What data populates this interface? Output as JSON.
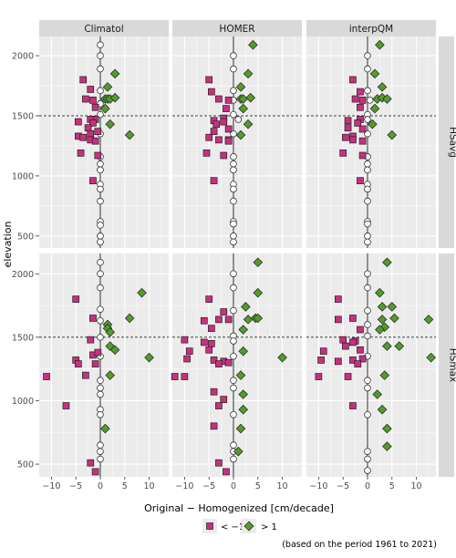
{
  "chart_data": {
    "type": "scatter",
    "xlabel": "Original − Homogenized [cm/decade]",
    "ylabel": "elevation",
    "caption": "(based on the period 1961 to 2021)",
    "columns": [
      "Climatol",
      "HOMER",
      "interpQM"
    ],
    "rows": [
      "HSavg",
      "HSmax"
    ],
    "xlim": [
      -12.5,
      14
    ],
    "ylim": [
      400,
      2160
    ],
    "x_ticks": [
      -10,
      -5,
      0,
      5,
      10
    ],
    "x_tick_labels": [
      "−10",
      "−5",
      "0",
      "5",
      "10"
    ],
    "y_ticks": [
      500,
      1000,
      1500,
      2000
    ],
    "y_tick_labels": [
      "500",
      "1000",
      "1500",
      "2000"
    ],
    "reference_line_elevation": 1500,
    "grid": true,
    "legend": {
      "position": "bottom",
      "entries": [
        {
          "label": "< −1",
          "shape": "square",
          "color": "#c8307f"
        },
        {
          "label": "> 1",
          "shape": "diamond",
          "color": "#559a2b"
        }
      ],
      "neutral_color": "#ffffff"
    },
    "colors": {
      "panel_bg": "#ebebeb",
      "grid": "#ffffff",
      "strip_bg": "#d9d9d9",
      "negative": "#c8307f",
      "positive": "#559a2b",
      "neutral": "#ffffff"
    },
    "series": [
      {
        "row": "HSavg",
        "column": "Climatol",
        "negative": [
          [
            -3.5,
            1800
          ],
          [
            -2,
            1720
          ],
          [
            -3,
            1640
          ],
          [
            -1.5,
            1630
          ],
          [
            -1,
            1570
          ],
          [
            -1,
            1470
          ],
          [
            -2,
            1470
          ],
          [
            -4.5,
            1450
          ],
          [
            -1.5,
            1440
          ],
          [
            -2.5,
            1400
          ],
          [
            -0.5,
            1370
          ],
          [
            -2,
            1350
          ],
          [
            -4.5,
            1330
          ],
          [
            -3.5,
            1320
          ],
          [
            -2,
            1300
          ],
          [
            -1,
            1290
          ],
          [
            -4,
            1190
          ],
          [
            -0.5,
            1170
          ],
          [
            -1.5,
            960
          ]
        ],
        "positive": [
          [
            3,
            1850
          ],
          [
            1.5,
            1740
          ],
          [
            1,
            1640
          ],
          [
            1.5,
            1640
          ],
          [
            2,
            1640
          ],
          [
            3,
            1650
          ],
          [
            1,
            1560
          ],
          [
            2,
            1430
          ],
          [
            6,
            1340
          ]
        ],
        "neutral": [
          [
            0,
            2090
          ],
          [
            0,
            2000
          ],
          [
            0,
            1890
          ],
          [
            0,
            1710
          ],
          [
            0,
            1600
          ],
          [
            0,
            1510
          ],
          [
            0,
            1350
          ],
          [
            0,
            1160
          ],
          [
            0,
            1100
          ],
          [
            0,
            1050
          ],
          [
            0,
            930
          ],
          [
            0,
            890
          ],
          [
            0,
            790
          ],
          [
            0,
            620
          ],
          [
            0,
            590
          ],
          [
            0,
            500
          ],
          [
            0,
            450
          ]
        ]
      },
      {
        "row": "HSavg",
        "column": "HOMER",
        "negative": [
          [
            -5,
            1800
          ],
          [
            -4.5,
            1700
          ],
          [
            -3,
            1640
          ],
          [
            -1,
            1630
          ],
          [
            -1.5,
            1560
          ],
          [
            -2,
            1480
          ],
          [
            -4,
            1460
          ],
          [
            -2,
            1450
          ],
          [
            -3.5,
            1430
          ],
          [
            -1,
            1390
          ],
          [
            -4,
            1370
          ],
          [
            -5,
            1320
          ],
          [
            -3,
            1300
          ],
          [
            -1,
            1300
          ],
          [
            -1,
            1290
          ],
          [
            -5.5,
            1190
          ],
          [
            -2,
            1170
          ],
          [
            -4,
            960
          ]
        ],
        "positive": [
          [
            4,
            2090
          ],
          [
            3,
            1850
          ],
          [
            1.5,
            1740
          ],
          [
            1.5,
            1640
          ],
          [
            2,
            1640
          ],
          [
            3.5,
            1650
          ],
          [
            2,
            1560
          ],
          [
            3,
            1430
          ],
          [
            1.5,
            1340
          ]
        ],
        "neutral": [
          [
            0,
            2000
          ],
          [
            0,
            1890
          ],
          [
            0,
            1710
          ],
          [
            0,
            1630
          ],
          [
            0,
            1510
          ],
          [
            1,
            1470
          ],
          [
            0,
            1350
          ],
          [
            0,
            1160
          ],
          [
            0,
            1100
          ],
          [
            0,
            1050
          ],
          [
            0,
            930
          ],
          [
            0,
            890
          ],
          [
            0,
            790
          ],
          [
            0,
            620
          ],
          [
            0,
            600
          ],
          [
            0,
            500
          ],
          [
            0,
            450
          ]
        ]
      },
      {
        "row": "HSavg",
        "column": "interpQM",
        "negative": [
          [
            -3,
            1800
          ],
          [
            -1.5,
            1700
          ],
          [
            -2.5,
            1640
          ],
          [
            -1,
            1630
          ],
          [
            -1.5,
            1570
          ],
          [
            -1.5,
            1470
          ],
          [
            -4,
            1460
          ],
          [
            -2,
            1440
          ],
          [
            -4,
            1400
          ],
          [
            -1,
            1390
          ],
          [
            -3,
            1330
          ],
          [
            -4.5,
            1320
          ],
          [
            -3,
            1300
          ],
          [
            -1,
            1290
          ],
          [
            -5,
            1190
          ],
          [
            -1,
            1170
          ],
          [
            -1.5,
            960
          ]
        ],
        "positive": [
          [
            2.5,
            2090
          ],
          [
            1.5,
            1850
          ],
          [
            3,
            1740
          ],
          [
            2,
            1640
          ],
          [
            3,
            1650
          ],
          [
            4,
            1640
          ],
          [
            1.5,
            1560
          ],
          [
            1,
            1430
          ],
          [
            5,
            1340
          ]
        ],
        "neutral": [
          [
            0,
            2000
          ],
          [
            0,
            1890
          ],
          [
            0,
            1710
          ],
          [
            0.5,
            1630
          ],
          [
            0,
            1510
          ],
          [
            0,
            1470
          ],
          [
            0,
            1350
          ],
          [
            0,
            1160
          ],
          [
            0,
            1100
          ],
          [
            0,
            1050
          ],
          [
            0,
            930
          ],
          [
            0,
            890
          ],
          [
            0,
            790
          ],
          [
            0,
            620
          ],
          [
            0,
            600
          ],
          [
            0,
            500
          ],
          [
            0,
            450
          ]
        ]
      },
      {
        "row": "HSmax",
        "column": "Climatol",
        "negative": [
          [
            -5,
            1800
          ],
          [
            -1.5,
            1650
          ],
          [
            -2,
            1480
          ],
          [
            -1.5,
            1360
          ],
          [
            -5,
            1320
          ],
          [
            -4.5,
            1290
          ],
          [
            -0.5,
            1380
          ],
          [
            -1,
            1290
          ],
          [
            -3,
            1200
          ],
          [
            -11,
            1190
          ],
          [
            -7,
            960
          ],
          [
            -2,
            510
          ],
          [
            -1,
            440
          ]
        ],
        "positive": [
          [
            8.5,
            1850
          ],
          [
            6,
            1650
          ],
          [
            1.5,
            1600
          ],
          [
            1.5,
            1570
          ],
          [
            2,
            1540
          ],
          [
            2,
            1430
          ],
          [
            3,
            1400
          ],
          [
            10,
            1340
          ],
          [
            2,
            1200
          ],
          [
            1,
            780
          ]
        ],
        "neutral": [
          [
            0,
            2090
          ],
          [
            0,
            2000
          ],
          [
            0,
            1890
          ],
          [
            0,
            1720
          ],
          [
            0,
            1630
          ],
          [
            0,
            1500
          ],
          [
            0,
            1350
          ],
          [
            0,
            1160
          ],
          [
            0,
            1100
          ],
          [
            0,
            1050
          ],
          [
            0,
            930
          ],
          [
            0,
            890
          ],
          [
            0,
            650
          ],
          [
            0,
            600
          ],
          [
            0,
            540
          ]
        ]
      },
      {
        "row": "HSmax",
        "column": "HOMER",
        "negative": [
          [
            -5,
            1800
          ],
          [
            -2,
            1700
          ],
          [
            -3,
            1640
          ],
          [
            -6,
            1630
          ],
          [
            -4.5,
            1570
          ],
          [
            -1,
            1640
          ],
          [
            -10,
            1480
          ],
          [
            -6,
            1460
          ],
          [
            -4.5,
            1450
          ],
          [
            -5,
            1400
          ],
          [
            -9,
            1390
          ],
          [
            -9.5,
            1330
          ],
          [
            -4,
            1320
          ],
          [
            -2,
            1310
          ],
          [
            -3,
            1290
          ],
          [
            -1,
            1300
          ],
          [
            -12,
            1190
          ],
          [
            -10,
            1190
          ],
          [
            -3,
            960
          ],
          [
            -4,
            1070
          ],
          [
            -2,
            1010
          ],
          [
            -4,
            800
          ],
          [
            -3,
            510
          ],
          [
            -1.5,
            440
          ]
        ],
        "positive": [
          [
            5,
            2090
          ],
          [
            5,
            1850
          ],
          [
            4.5,
            1650
          ],
          [
            5,
            1650
          ],
          [
            3,
            1640
          ],
          [
            2.5,
            1740
          ],
          [
            2,
            1560
          ],
          [
            2,
            1390
          ],
          [
            10,
            1340
          ],
          [
            1.5,
            1200
          ],
          [
            2,
            1050
          ],
          [
            2,
            930
          ],
          [
            1.5,
            780
          ],
          [
            1,
            600
          ]
        ],
        "neutral": [
          [
            0,
            2000
          ],
          [
            0,
            1890
          ],
          [
            0,
            1710
          ],
          [
            0,
            1510
          ],
          [
            0,
            1470
          ],
          [
            0,
            1350
          ],
          [
            0,
            1160
          ],
          [
            0,
            1100
          ],
          [
            0,
            890
          ],
          [
            0,
            650
          ],
          [
            0,
            600
          ],
          [
            0,
            540
          ]
        ]
      },
      {
        "row": "HSmax",
        "column": "interpQM",
        "negative": [
          [
            -6,
            1800
          ],
          [
            -3,
            1650
          ],
          [
            -6,
            1640
          ],
          [
            -1.5,
            1560
          ],
          [
            -5,
            1480
          ],
          [
            -2.5,
            1470
          ],
          [
            -3,
            1460
          ],
          [
            -4.5,
            1430
          ],
          [
            -1.5,
            1400
          ],
          [
            -9,
            1390
          ],
          [
            -9.5,
            1320
          ],
          [
            -6,
            1310
          ],
          [
            -3,
            1320
          ],
          [
            -1,
            1330
          ],
          [
            -2,
            1290
          ],
          [
            -10,
            1190
          ],
          [
            -4,
            1190
          ],
          [
            -3,
            960
          ]
        ],
        "positive": [
          [
            4,
            2090
          ],
          [
            2.5,
            1850
          ],
          [
            3,
            1740
          ],
          [
            5,
            1740
          ],
          [
            5.5,
            1650
          ],
          [
            12.5,
            1640
          ],
          [
            3,
            1640
          ],
          [
            3.5,
            1580
          ],
          [
            2.5,
            1560
          ],
          [
            4,
            1430
          ],
          [
            6.5,
            1430
          ],
          [
            13,
            1340
          ],
          [
            3.5,
            1200
          ],
          [
            2,
            1050
          ],
          [
            3,
            930
          ],
          [
            4,
            780
          ],
          [
            4,
            640
          ]
        ],
        "neutral": [
          [
            0,
            2000
          ],
          [
            0,
            1890
          ],
          [
            0,
            1710
          ],
          [
            0,
            1600
          ],
          [
            0,
            1510
          ],
          [
            0,
            1350
          ],
          [
            0,
            1160
          ],
          [
            0,
            1100
          ],
          [
            0,
            890
          ],
          [
            0,
            600
          ],
          [
            0,
            540
          ],
          [
            0,
            450
          ]
        ]
      }
    ]
  }
}
